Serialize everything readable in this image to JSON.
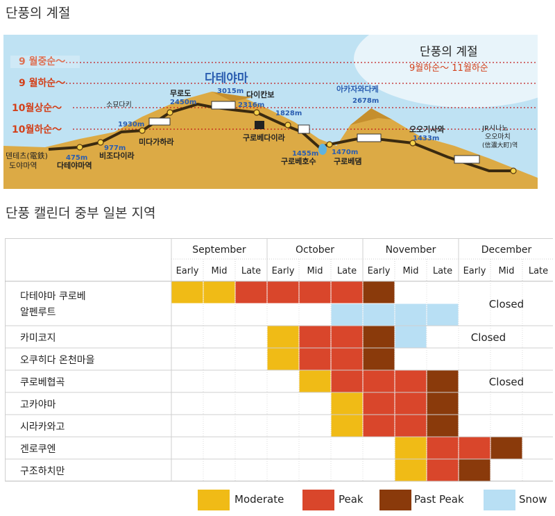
{
  "titles": {
    "season": "단풍의 계절",
    "calendar": "단풍 캘린더  중부 일본 지역"
  },
  "route_map": {
    "box_title": "단풍의 계절",
    "box_subtitle": "9월하순～ 11월하순",
    "season_lines": [
      "9 월중순～",
      "9 월하순～",
      "10월상순～",
      "10월하순～"
    ],
    "peak_label": "다테야마",
    "peak_alt": "3015m",
    "places": [
      {
        "name": "덴테츠(電鉄)",
        "name2": "도야마역"
      },
      {
        "name": "다테야마역",
        "alt": "475m"
      },
      {
        "name": "비조다이라",
        "alt": "977m"
      },
      {
        "name": "소묘다키"
      },
      {
        "name": "미다가하라",
        "alt": "1930m"
      },
      {
        "name": "무로도",
        "alt": "2450m"
      },
      {
        "name": "다이칸보",
        "alt": "2316m"
      },
      {
        "name": "구로베다이라",
        "alt": "1828m"
      },
      {
        "name": "구로베호수",
        "alt": "1455m"
      },
      {
        "name": "구로베댐",
        "alt": "1470m"
      },
      {
        "name": "아카자와다케",
        "alt": "2678m"
      },
      {
        "name": "오오기사와",
        "alt": "1433m"
      },
      {
        "name": "JR시나노",
        "name2": "오오마치",
        "name3": "(信濃大町)역"
      }
    ]
  },
  "calendar": {
    "months": [
      "September",
      "October",
      "November",
      "December"
    ],
    "periods": [
      "Early",
      "Mid",
      "Late"
    ],
    "closed_label": "Closed",
    "colors": {
      "M": "#f0bb16",
      "P": "#d9462b",
      "X": "#8a3a0b",
      "S": "#b8dff4",
      "empty": "#ffffff"
    },
    "rows": [
      {
        "name": "다테야마 쿠로베",
        "name2": "알펜루트",
        "cells_top": [
          "M",
          "M",
          "P",
          "P",
          "P",
          "P",
          "X",
          "",
          "",
          "",
          "",
          ""
        ],
        "cells_bottom": [
          "",
          "",
          "",
          "",
          "",
          "S",
          "S",
          "S",
          "S",
          "",
          "",
          ""
        ],
        "closed": true
      },
      {
        "name": "카미코지",
        "cells": [
          "",
          "",
          "",
          "M",
          "P",
          "P",
          "X",
          "S",
          "",
          "",
          "",
          ""
        ],
        "closed": true
      },
      {
        "name": "오쿠히다 온천마을",
        "cells": [
          "",
          "",
          "",
          "M",
          "P",
          "P",
          "X",
          "",
          "",
          "",
          "",
          ""
        ],
        "closed": false
      },
      {
        "name": "쿠로베협곡",
        "cells": [
          "",
          "",
          "",
          "",
          "M",
          "P",
          "P",
          "P",
          "X",
          "",
          "",
          ""
        ],
        "closed": true
      },
      {
        "name": "고카야마",
        "cells": [
          "",
          "",
          "",
          "",
          "",
          "M",
          "P",
          "P",
          "X",
          "",
          "",
          ""
        ],
        "closed": false
      },
      {
        "name": "시라카와고",
        "cells": [
          "",
          "",
          "",
          "",
          "",
          "M",
          "P",
          "P",
          "X",
          "",
          "",
          ""
        ],
        "closed": false
      },
      {
        "name": "겐로쿠엔",
        "cells": [
          "",
          "",
          "",
          "",
          "",
          "",
          "",
          "M",
          "P",
          "P",
          "X",
          ""
        ],
        "closed": false
      },
      {
        "name": "구조하치만",
        "cells": [
          "",
          "",
          "",
          "",
          "",
          "",
          "",
          "M",
          "P",
          "X",
          "",
          ""
        ],
        "closed": false
      }
    ]
  },
  "legend": [
    {
      "label": "Moderate",
      "key": "M"
    },
    {
      "label": "Peak",
      "key": "P"
    },
    {
      "label": "Past Peak",
      "key": "X"
    },
    {
      "label": "Snow",
      "key": "S"
    }
  ]
}
